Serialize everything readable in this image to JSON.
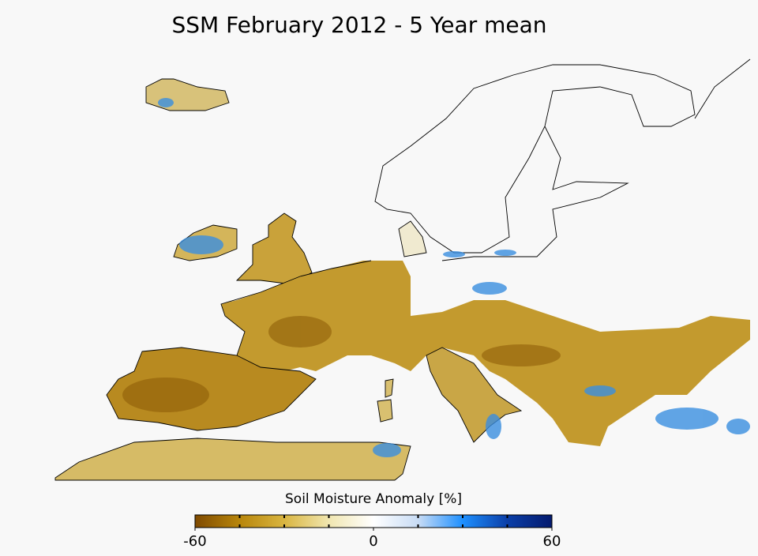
{
  "title": "SSM February 2012 - 5 Year mean",
  "colorbar": {
    "label": "Soil Moisture Anomaly [%]",
    "range": [
      -60,
      60
    ],
    "ticks": [
      -60,
      0,
      60
    ],
    "minor_ticks": [
      -45,
      -30,
      -15,
      15,
      30,
      45
    ],
    "colors": [
      "#7f4a00",
      "#b8860b",
      "#d9b540",
      "#f0e6b0",
      "#ffffff",
      "#c8dcf5",
      "#1e90ff",
      "#0b3fa8",
      "#041a6e"
    ]
  }
}
